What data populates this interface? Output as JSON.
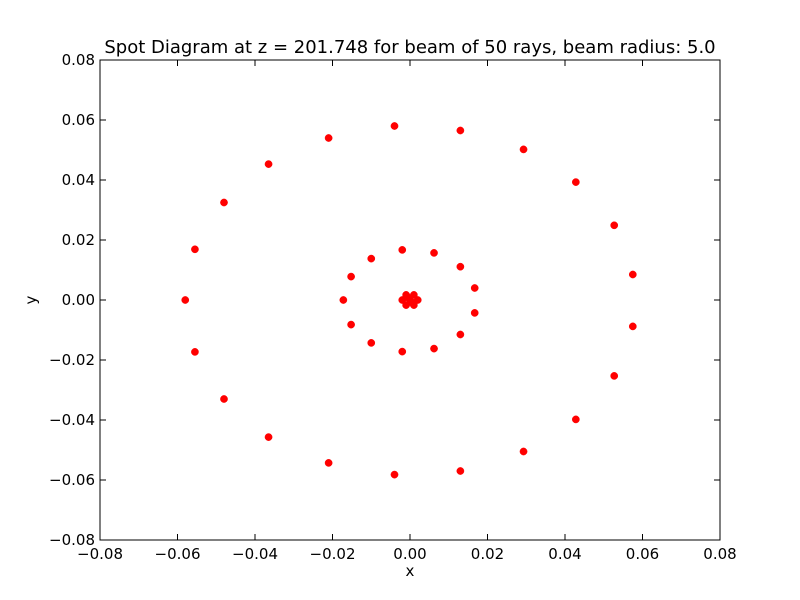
{
  "chart_data": {
    "type": "scatter",
    "title": "Spot Diagram at z = 201.748 for beam of 50 rays, beam radius: 5.0",
    "xlabel": "x",
    "ylabel": "y",
    "xlim": [
      -0.08,
      0.08
    ],
    "ylim": [
      -0.08,
      0.08
    ],
    "xticks": [
      -0.08,
      -0.06,
      -0.04,
      -0.02,
      0.0,
      0.02,
      0.04,
      0.06,
      0.08
    ],
    "yticks": [
      -0.08,
      -0.06,
      -0.04,
      -0.02,
      0.0,
      0.02,
      0.04,
      0.06,
      0.08
    ],
    "xtick_labels": [
      "−0.08",
      "−0.06",
      "−0.04",
      "−0.02",
      "0.00",
      "0.02",
      "0.04",
      "0.06",
      "0.08"
    ],
    "ytick_labels": [
      "−0.08",
      "−0.06",
      "−0.04",
      "−0.02",
      "0.00",
      "0.02",
      "0.04",
      "0.06",
      "0.08"
    ],
    "grid": false,
    "marker_color": "#ff0000",
    "points": [
      {
        "x": -0.004,
        "y": 0.058
      },
      {
        "x": 0.013,
        "y": 0.0565
      },
      {
        "x": 0.0293,
        "y": 0.0502
      },
      {
        "x": 0.0428,
        "y": 0.0393
      },
      {
        "x": 0.0527,
        "y": 0.0249
      },
      {
        "x": 0.0575,
        "y": 0.0085
      },
      {
        "x": 0.0575,
        "y": -0.0088
      },
      {
        "x": 0.0527,
        "y": -0.0253
      },
      {
        "x": 0.0428,
        "y": -0.0398
      },
      {
        "x": 0.0293,
        "y": -0.0505
      },
      {
        "x": 0.013,
        "y": -0.057
      },
      {
        "x": -0.004,
        "y": -0.0582
      },
      {
        "x": -0.021,
        "y": -0.0543
      },
      {
        "x": -0.0365,
        "y": -0.0457
      },
      {
        "x": -0.048,
        "y": -0.033
      },
      {
        "x": -0.0555,
        "y": -0.0173
      },
      {
        "x": -0.058,
        "y": 0.0
      },
      {
        "x": -0.0555,
        "y": 0.0169
      },
      {
        "x": -0.048,
        "y": 0.0325
      },
      {
        "x": -0.0365,
        "y": 0.0453
      },
      {
        "x": -0.021,
        "y": 0.054
      },
      {
        "x": -0.002,
        "y": 0.0167
      },
      {
        "x": 0.0062,
        "y": 0.0157
      },
      {
        "x": 0.013,
        "y": 0.0111
      },
      {
        "x": 0.0167,
        "y": 0.004
      },
      {
        "x": 0.0167,
        "y": -0.0043
      },
      {
        "x": 0.013,
        "y": -0.0115
      },
      {
        "x": 0.0062,
        "y": -0.0162
      },
      {
        "x": -0.002,
        "y": -0.0172
      },
      {
        "x": -0.01,
        "y": -0.0143
      },
      {
        "x": -0.0152,
        "y": -0.0082
      },
      {
        "x": -0.0172,
        "y": 0.0
      },
      {
        "x": -0.0152,
        "y": 0.0078
      },
      {
        "x": -0.01,
        "y": 0.0138
      },
      {
        "x": -0.002,
        "y": 0.0
      },
      {
        "x": -0.001,
        "y": 0.0017
      },
      {
        "x": 0.001,
        "y": 0.0017
      },
      {
        "x": 0.002,
        "y": 0.0
      },
      {
        "x": 0.001,
        "y": -0.0017
      },
      {
        "x": -0.001,
        "y": -0.0017
      },
      {
        "x": 0.0,
        "y": 0.0
      },
      {
        "x": -0.0005,
        "y": 0.0008
      },
      {
        "x": 0.0005,
        "y": -0.0008
      }
    ]
  }
}
